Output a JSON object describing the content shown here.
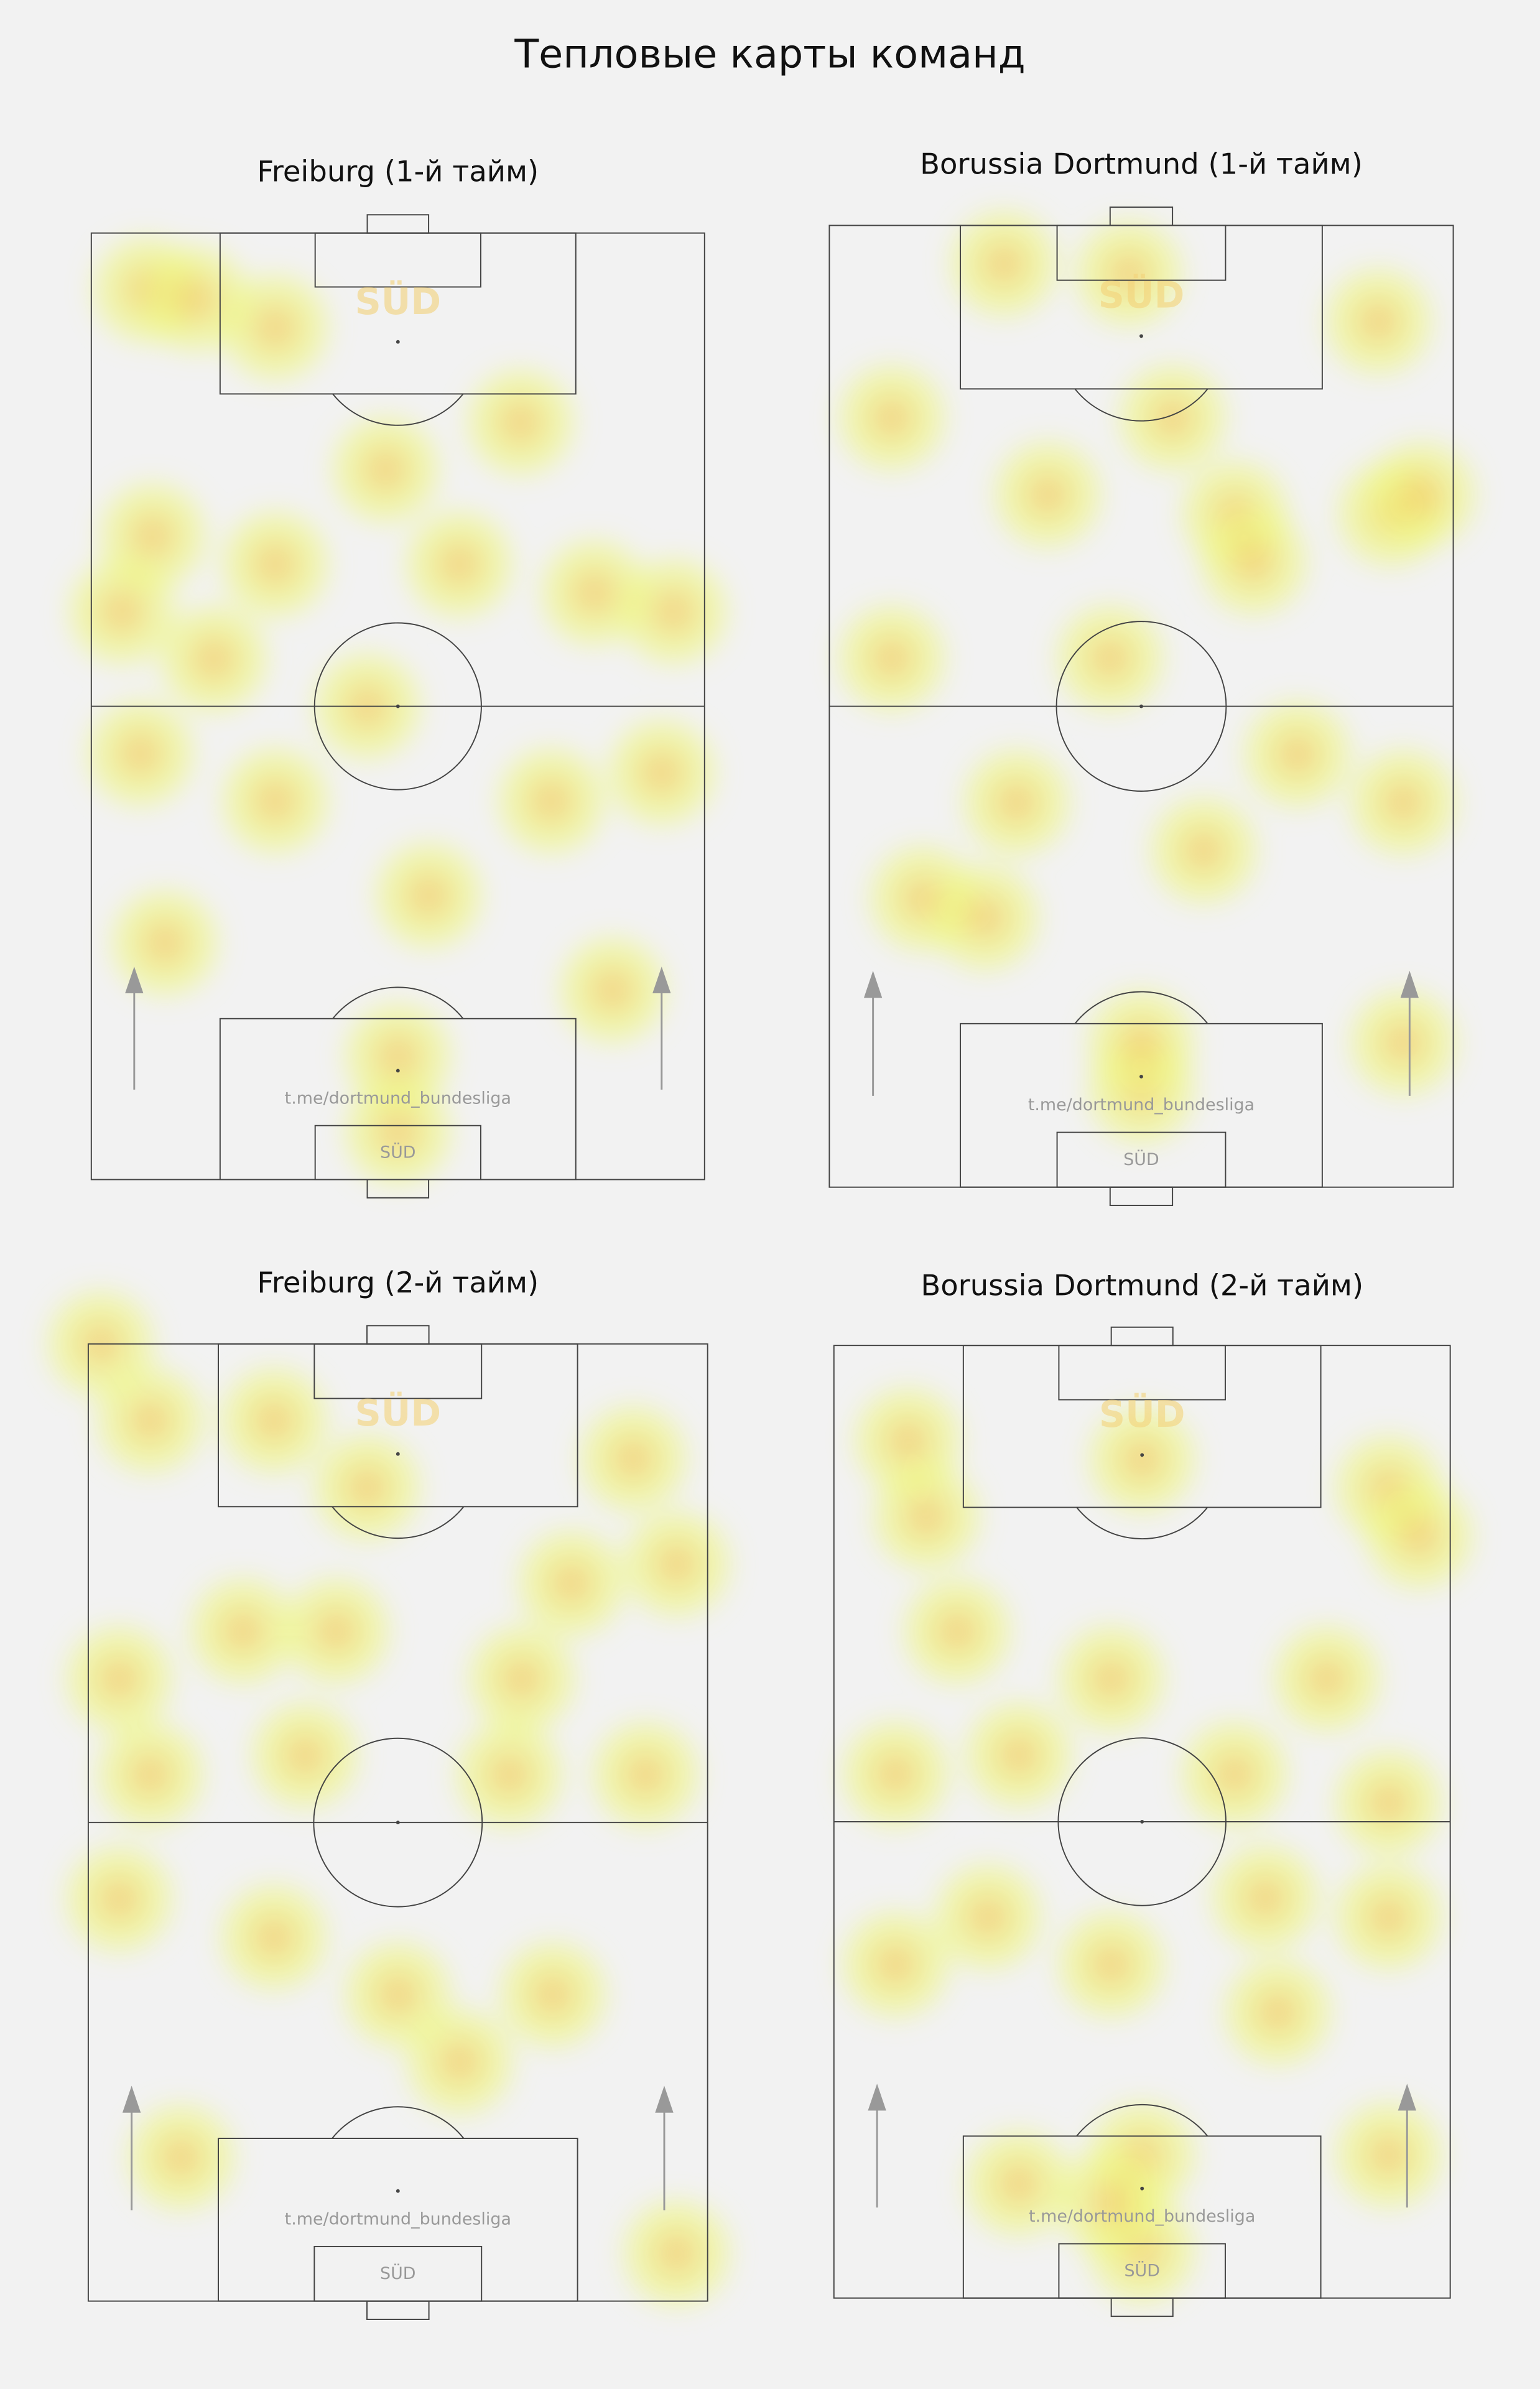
{
  "title": "Тепловые карты команд",
  "chart_data": [
    {
      "type": "heatmap",
      "title": "Freiburg (1-й тайм)",
      "watermark": "t.me/dortmund_bundesliga",
      "logo": "SÜD",
      "x": [
        9,
        17,
        30,
        5,
        10,
        30,
        48,
        60,
        82,
        95,
        8,
        30,
        55,
        75,
        93,
        12,
        50,
        50,
        85,
        70,
        20,
        45
      ],
      "y": [
        6,
        7,
        10,
        40,
        32,
        35,
        25,
        35,
        38,
        40,
        55,
        60,
        70,
        60,
        57,
        75,
        87,
        95,
        80,
        20,
        45,
        50
      ]
    },
    {
      "type": "heatmap",
      "title": "Borussia Dortmund (1-й тайм)",
      "watermark": "t.me/dortmund_bundesliga",
      "logo": "SÜD",
      "x": [
        28,
        48,
        88,
        10,
        35,
        65,
        90,
        68,
        95,
        45,
        10,
        30,
        92,
        15,
        25,
        60,
        75,
        50,
        50,
        92,
        55
      ],
      "y": [
        4,
        5,
        10,
        20,
        28,
        30,
        30,
        35,
        28,
        45,
        45,
        60,
        60,
        70,
        72,
        65,
        55,
        90,
        85,
        85,
        20
      ]
    },
    {
      "type": "heatmap",
      "title": "Freiburg (2-й тайм)",
      "watermark": "t.me/dortmund_bundesliga",
      "logo": "SÜD",
      "x": [
        2,
        10,
        30,
        45,
        88,
        95,
        5,
        25,
        40,
        70,
        78,
        10,
        35,
        68,
        90,
        5,
        30,
        50,
        75,
        15,
        60,
        95
      ],
      "y": [
        0,
        8,
        8,
        15,
        12,
        23,
        35,
        30,
        30,
        35,
        25,
        45,
        43,
        45,
        45,
        58,
        62,
        68,
        68,
        85,
        75,
        95
      ]
    },
    {
      "type": "heatmap",
      "title": "Borussia Dortmund (2-й тайм)",
      "watermark": "t.me/dortmund_bundesliga",
      "logo": "SÜD",
      "x": [
        12,
        15,
        50,
        90,
        95,
        20,
        45,
        80,
        10,
        30,
        65,
        90,
        10,
        25,
        45,
        70,
        72,
        90,
        50,
        50,
        45,
        90,
        30
      ],
      "y": [
        10,
        18,
        12,
        15,
        20,
        30,
        35,
        35,
        45,
        43,
        45,
        48,
        65,
        60,
        65,
        58,
        70,
        60,
        85,
        95,
        90,
        85,
        88
      ]
    }
  ]
}
